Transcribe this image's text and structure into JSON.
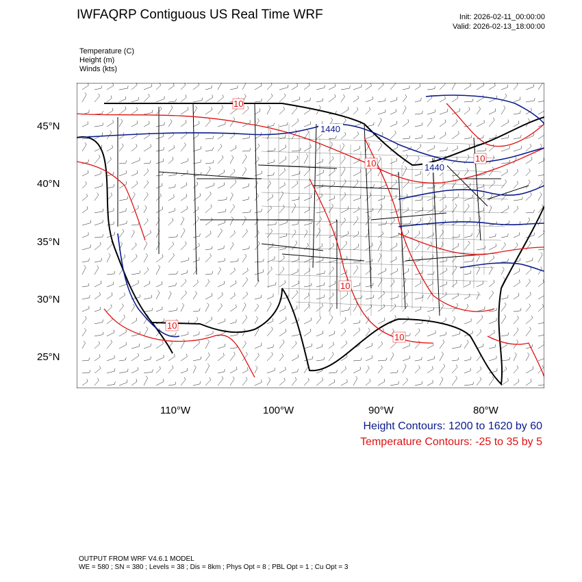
{
  "title": "IWFAQRP Contiguous US Real Time WRF",
  "init_label": "Init: 2026-02-11_00:00:00",
  "valid_label": "Valid: 2026-02-13_18:00:00",
  "fields": [
    "Temperature   (C)",
    "Height   (m)",
    "Winds   (kts)"
  ],
  "lat_labels": [
    "45°N",
    "40°N",
    "35°N",
    "30°N",
    "25°N"
  ],
  "lon_labels": [
    "110°W",
    "100°W",
    "90°W",
    "80°W"
  ],
  "height_contour_labels": [
    "1440",
    "1440"
  ],
  "temp_contour_labels": [
    "10",
    "10",
    "10",
    "10",
    "10",
    "10"
  ],
  "height_legend": "Height Contours: 1200 to 1620 by 60",
  "temp_legend": "Temperature Contours: -25 to 35 by 5",
  "footer_line1": "OUTPUT FROM WRF V4.6.1 MODEL",
  "footer_line2": "WE = 580 ; SN = 380 ; Levels = 38 ; Dis = 8km ; Phys Opt = 8 ; PBL Opt = 1 ; Cu Opt = 3",
  "colors": {
    "height": "#0a1a8c",
    "temperature": "#e01010",
    "boundary": "#000000"
  }
}
